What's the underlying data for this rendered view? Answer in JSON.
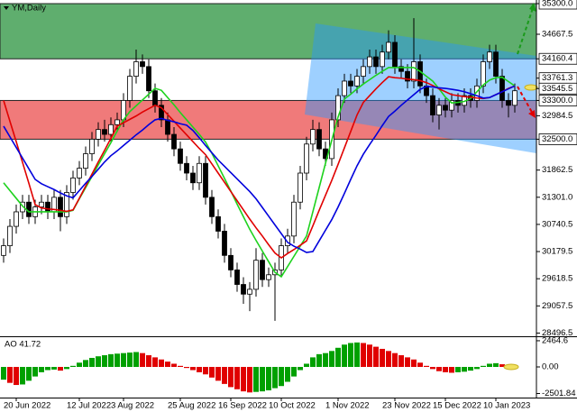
{
  "chart_data": [
    {
      "type": "candlestick",
      "title": "YM,Daily",
      "categories": [
        null,
        null,
        "20 Jun 2022",
        null,
        null,
        null,
        null,
        null,
        null,
        null,
        null,
        null,
        "12 Jul 2022",
        null,
        null,
        null,
        null,
        null,
        null,
        "3 Aug 2022",
        null,
        null,
        null,
        null,
        null,
        null,
        null,
        null,
        "25 Aug 2022",
        null,
        null,
        null,
        null,
        null,
        null,
        null,
        "16 Sep 2022",
        null,
        null,
        null,
        null,
        null,
        null,
        null,
        "10 Oct 2022",
        null,
        null,
        null,
        null,
        null,
        null,
        null,
        null,
        "1 Nov 2022",
        null,
        null,
        null,
        null,
        null,
        null,
        null,
        null,
        "23 Nov 2022",
        null,
        null,
        null,
        null,
        null,
        null,
        null,
        "15 Dec 2022",
        null,
        null,
        null,
        null,
        null,
        null,
        null,
        "10 Jan 2023",
        null,
        null,
        null
      ],
      "open": [
        30100,
        30300,
        30700,
        31000,
        31200,
        30900,
        31100,
        31200,
        31000,
        31300,
        30900,
        31400,
        31700,
        31900,
        32200,
        32500,
        32700,
        32600,
        32800,
        32900,
        33300,
        33800,
        34100,
        34000,
        33500,
        33200,
        32900,
        32600,
        32300,
        32000,
        31800,
        31600,
        32000,
        31300,
        30900,
        30600,
        30100,
        29800,
        29500,
        29300,
        29400,
        30000,
        29600,
        29700,
        29800,
        30300,
        30500,
        31200,
        31800,
        32400,
        32700,
        32300,
        32100,
        32900,
        33400,
        33700,
        33600,
        33800,
        34000,
        34200,
        34000,
        34300,
        34500,
        34000,
        33900,
        33700,
        34100,
        33600,
        33400,
        33000,
        33200,
        33100,
        33300,
        33200,
        33400,
        33300,
        33600,
        34100,
        34300,
        33800,
        33300,
        33200
      ],
      "high": [
        30450,
        30850,
        31150,
        31350,
        31350,
        31250,
        31350,
        31350,
        31450,
        31450,
        31550,
        31850,
        32050,
        32350,
        32650,
        32850,
        32900,
        32950,
        33050,
        33450,
        33950,
        34350,
        34250,
        34150,
        33650,
        33350,
        33050,
        32750,
        32450,
        32150,
        31950,
        32150,
        32150,
        31450,
        31050,
        30750,
        30250,
        29950,
        29650,
        29550,
        30250,
        30150,
        29850,
        29950,
        30450,
        30650,
        31350,
        31950,
        32550,
        32900,
        32850,
        32450,
        33050,
        33550,
        33850,
        33850,
        33950,
        34150,
        34350,
        34350,
        34450,
        34750,
        34650,
        34150,
        34050,
        35000,
        34250,
        33750,
        33550,
        33350,
        33350,
        33450,
        33450,
        33550,
        33550,
        33750,
        34250,
        34450,
        34450,
        33950,
        33450,
        33650
      ],
      "low": [
        29950,
        30150,
        30550,
        30850,
        30750,
        30750,
        30950,
        30850,
        30850,
        30600,
        30750,
        31250,
        31550,
        31750,
        32050,
        32350,
        32450,
        32450,
        32650,
        32750,
        33150,
        33650,
        33850,
        33350,
        33050,
        32750,
        32450,
        32150,
        31850,
        31650,
        31450,
        31450,
        31150,
        30750,
        30450,
        29950,
        29650,
        29350,
        29100,
        28950,
        29250,
        29450,
        29450,
        28750,
        29650,
        30150,
        30350,
        31050,
        31650,
        32250,
        32150,
        31950,
        31950,
        32750,
        33250,
        33450,
        33450,
        33650,
        33850,
        33850,
        33850,
        34150,
        33850,
        33750,
        33550,
        33550,
        33450,
        33250,
        32850,
        32700,
        32950,
        32950,
        33050,
        33050,
        33150,
        33150,
        33450,
        33950,
        33650,
        33150,
        32950,
        33050
      ],
      "close": [
        30300,
        30700,
        31000,
        31200,
        30900,
        31100,
        31200,
        31000,
        31300,
        30900,
        31400,
        31700,
        31900,
        32200,
        32500,
        32700,
        32600,
        32800,
        32900,
        33300,
        33800,
        34100,
        34000,
        33500,
        33200,
        32900,
        32600,
        32300,
        32000,
        31800,
        31600,
        32000,
        31300,
        30900,
        30600,
        30100,
        29800,
        29500,
        29300,
        29400,
        30000,
        29600,
        29700,
        29800,
        30300,
        30500,
        31200,
        31800,
        32400,
        32700,
        32300,
        32100,
        32900,
        33400,
        33700,
        33600,
        33800,
        34000,
        34200,
        34000,
        34300,
        34500,
        34000,
        33900,
        33700,
        34100,
        33600,
        33400,
        33000,
        33200,
        33100,
        33300,
        33200,
        33400,
        33300,
        33600,
        34100,
        34300,
        33800,
        33300,
        33200,
        33500
      ],
      "up_color": "#ffffff",
      "down_color": "#000000",
      "series": [
        {
          "color": "#1ed21e",
          "values": [
            31600,
            31440,
            31280,
            31120,
            31000,
            31000,
            31000,
            31000,
            31000,
            31000,
            31000,
            31030,
            31270,
            31500,
            31730,
            31970,
            32200,
            32430,
            32670,
            32900,
            33070,
            33190,
            33310,
            33430,
            33550,
            33510,
            33360,
            33210,
            33050,
            32900,
            32750,
            32600,
            32440,
            32210,
            31950,
            31690,
            31430,
            31160,
            30900,
            30640,
            30410,
            30190,
            29970,
            29750,
            29660,
            29870,
            30080,
            30290,
            30500,
            31000,
            31500,
            32000,
            32480,
            32960,
            33330,
            33430,
            33540,
            33640,
            33730,
            33820,
            33900,
            33980,
            33980,
            33980,
            33980,
            33980,
            33900,
            33800,
            33700,
            33540,
            33370,
            33250,
            33260,
            33280,
            33340,
            33480,
            33620,
            33720,
            33770,
            33780,
            33690,
            33600
          ]
        },
        {
          "color": "#e00000",
          "values": [
            33300,
            32870,
            32450,
            32020,
            31590,
            31150,
            31080,
            31060,
            31050,
            31030,
            31010,
            31040,
            31280,
            31530,
            31780,
            32030,
            32270,
            32520,
            32770,
            32840,
            32910,
            32980,
            33060,
            33130,
            33200,
            33150,
            33010,
            32870,
            32730,
            32590,
            32450,
            32310,
            32180,
            31990,
            31800,
            31610,
            31420,
            31230,
            31040,
            30850,
            30670,
            30500,
            30320,
            30150,
            30050,
            30140,
            30220,
            30310,
            30400,
            30710,
            31030,
            31340,
            31650,
            31980,
            32320,
            32660,
            33000,
            33260,
            33400,
            33540,
            33670,
            33790,
            33770,
            33760,
            33740,
            33730,
            33710,
            33670,
            33610,
            33540,
            33480,
            33420,
            33400,
            33380,
            33370,
            33350,
            33340,
            33360,
            33420,
            33480,
            33550,
            33600
          ]
        },
        {
          "color": "#0000dc",
          "values": [
            32770,
            32550,
            32330,
            32110,
            31890,
            31670,
            31580,
            31520,
            31460,
            31390,
            31330,
            31290,
            31440,
            31590,
            31730,
            31880,
            32030,
            32160,
            32260,
            32370,
            32480,
            32590,
            32690,
            32800,
            32900,
            32930,
            32890,
            32860,
            32820,
            32790,
            32680,
            32530,
            32370,
            32220,
            32070,
            31940,
            31810,
            31680,
            31550,
            31420,
            31270,
            31090,
            30910,
            30730,
            30550,
            30370,
            30290,
            30230,
            30160,
            30180,
            30400,
            30620,
            30840,
            31100,
            31380,
            31670,
            31950,
            32190,
            32390,
            32580,
            32780,
            32970,
            33080,
            33200,
            33310,
            33420,
            33530,
            33590,
            33580,
            33560,
            33550,
            33530,
            33510,
            33480,
            33440,
            33400,
            33350,
            33360,
            33420,
            33480,
            33540,
            33600
          ]
        }
      ],
      "zones": [
        {
          "from": 35300,
          "to": 34160.4,
          "color": "#5fae6e"
        },
        {
          "from": 33300,
          "to": 32500,
          "color": "#f07a7a"
        }
      ],
      "ylim": [
        28430,
        35375
      ],
      "yticks": [
        {
          "value": 35300,
          "label": "35300.0",
          "box": true
        },
        {
          "value": 34667.5,
          "label": "34667.5"
        },
        {
          "value": 34160.4,
          "label": "34160.4",
          "box": true
        },
        {
          "value": 33761.3,
          "label": "33761.3",
          "box": true
        },
        {
          "value": 33545.5,
          "label": "33545.5",
          "box": true
        },
        {
          "value": 33300,
          "label": "33300.0",
          "box": true
        },
        {
          "value": 32984.5,
          "label": "32984.5"
        },
        {
          "value": 32500,
          "label": "32500.0",
          "box": true
        },
        {
          "value": 31862.5,
          "label": "31862.5"
        },
        {
          "value": 31301,
          "label": "31301.0"
        },
        {
          "value": 30740.5,
          "label": "30740.5"
        },
        {
          "value": 30179.5,
          "label": "30179.5"
        },
        {
          "value": 29618.5,
          "label": "29618.5"
        },
        {
          "value": 29057.5,
          "label": "29057.5"
        },
        {
          "value": 28496.5,
          "label": "28496.5"
        }
      ]
    },
    {
      "type": "bar",
      "title": "AO 41.72",
      "values": [
        -1200,
        -1500,
        -1700,
        -1650,
        -1300,
        -900,
        -500,
        -300,
        -250,
        -350,
        -200,
        100,
        400,
        650,
        850,
        1000,
        1100,
        1200,
        1250,
        1300,
        1350,
        1400,
        1300,
        1100,
        900,
        700,
        500,
        300,
        100,
        -100,
        -300,
        -500,
        -700,
        -1000,
        -1300,
        -1600,
        -1900,
        -2100,
        -2300,
        -2400,
        -2350,
        -2300,
        -2200,
        -2000,
        -1800,
        -1400,
        -900,
        -300,
        300,
        900,
        1200,
        1300,
        1500,
        1800,
        2100,
        2250,
        2300,
        2250,
        2100,
        1900,
        1700,
        1500,
        1300,
        1100,
        900,
        700,
        400,
        100,
        -200,
        -400,
        -500,
        -550,
        -500,
        -450,
        -350,
        -200,
        100,
        300,
        350,
        250,
        100,
        41.72
      ],
      "up_color": "#00a000",
      "down_color": "#e00000",
      "ylim": [
        -2800,
        2800
      ],
      "yticks": [
        {
          "value": 2464.6,
          "label": "2464.6"
        },
        {
          "value": 0,
          "label": "0.00"
        },
        {
          "value": -2501.84,
          "label": "-2501.84"
        }
      ]
    }
  ]
}
